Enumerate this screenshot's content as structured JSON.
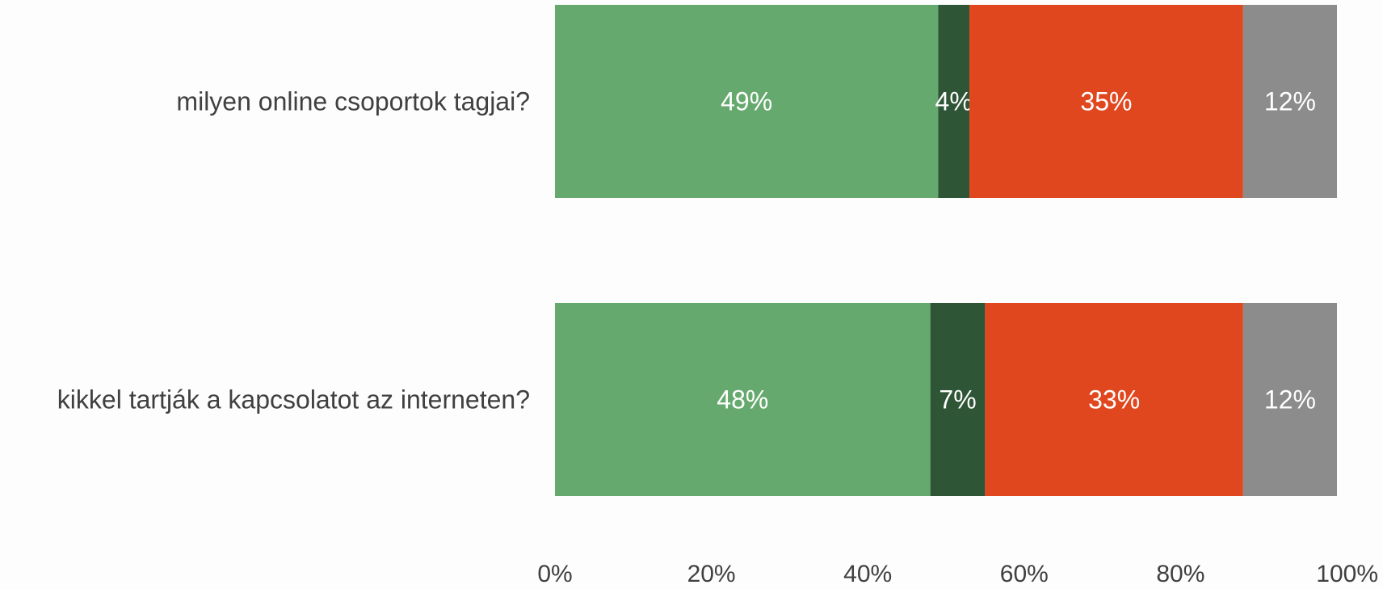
{
  "chart_data": {
    "type": "bar",
    "orientation": "horizontal",
    "stacked": true,
    "categories": [
      "milyen online csoportok tagjai?",
      "kikkel tartják a kapcsolatot az interneten?"
    ],
    "series": [
      {
        "color": "#66a96e",
        "values": [
          49,
          48
        ],
        "labels": [
          "49%",
          "48%"
        ]
      },
      {
        "color": "#2e5535",
        "values": [
          4,
          7
        ],
        "labels": [
          "4%",
          "7%"
        ]
      },
      {
        "color": "#e0471e",
        "values": [
          35,
          33
        ],
        "labels": [
          "35%",
          "33%"
        ]
      },
      {
        "color": "#8c8c8c",
        "values": [
          12,
          12
        ],
        "labels": [
          "12%",
          "12%"
        ]
      }
    ],
    "xlim": [
      0,
      100
    ],
    "x_ticks": [
      "0%",
      "20%",
      "40%",
      "60%",
      "80%",
      "100%"
    ],
    "grid": false,
    "legend": "none"
  }
}
